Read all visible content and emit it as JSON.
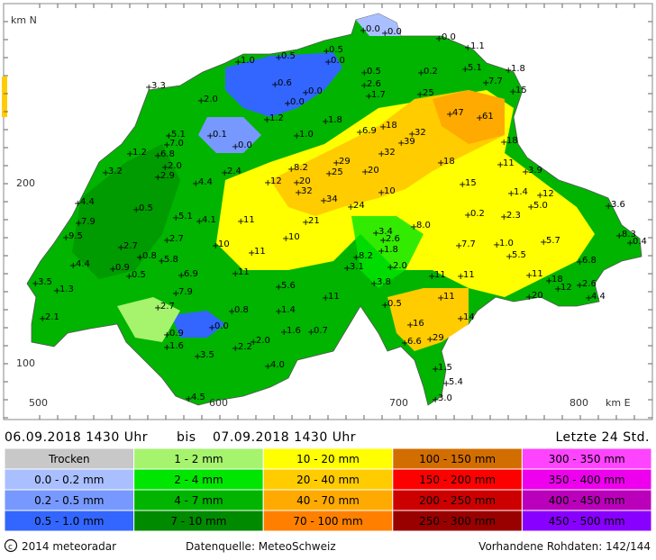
{
  "map": {
    "axis_labels": {
      "north": "km N",
      "east": "km E"
    },
    "y_ticks": [
      "200",
      "100"
    ],
    "x_ticks": [
      "500",
      "600",
      "700",
      "800"
    ],
    "stations": [
      "0.0",
      "0.0",
      "0.0",
      "1.1",
      "0.5",
      "1.0",
      "0.5",
      "0.0",
      "0.5",
      "0.2",
      "5.1",
      "1.8",
      "7.7",
      "15",
      "3.3",
      "0.6",
      "2.6",
      "0.0",
      "0.0",
      "1.7",
      "25",
      "2.0",
      "1.2",
      "1.8",
      "47",
      "61",
      "18",
      "32",
      "6.9",
      "39",
      "0.1",
      "0.0",
      "1.0",
      "5.1",
      "7.0",
      "18",
      "32",
      "1.2",
      "6.8",
      "2.0",
      "3.2",
      "2.9",
      "29",
      "8.2",
      "25",
      "20",
      "18",
      "11",
      "3.9",
      "2.4",
      "12",
      "20",
      "32",
      "4.4",
      "15",
      "10",
      "1.4",
      "12",
      "4.4",
      "34",
      "24",
      "5.0",
      "0.5",
      "5.1",
      "4.1",
      "11",
      "21",
      "0.2",
      "2.3",
      "3.6",
      "7.9",
      "8.0",
      "9.5",
      "3.4",
      "2.6",
      "10",
      "8.3",
      "0.4",
      "5.7",
      "10",
      "11",
      "2.7",
      "2.7",
      "7.7",
      "1.0",
      "1.8",
      "8.2",
      "5.5",
      "6.8",
      "4.4",
      "0.8",
      "5.8",
      "0.9",
      "0.5",
      "6.9",
      "11",
      "3.1",
      "2.0",
      "11",
      "11",
      "11",
      "18",
      "12",
      "2.6",
      "4.4",
      "3.5",
      "1.3",
      "7.9",
      "5.6",
      "11",
      "3.8",
      "11",
      "20",
      "2.7",
      "0.8",
      "1.4",
      "0.5",
      "14",
      "2.1",
      "0.0",
      "1.6",
      "0.7",
      "16",
      "6.6",
      "29",
      "0.9",
      "1.6",
      "2.0",
      "2.2",
      "3.5",
      "4.0",
      "1.5",
      "5.4",
      "3.0",
      "4.5"
    ]
  },
  "header": {
    "from": "06.09.2018 1430 Uhr",
    "bis": "bis",
    "to": "07.09.2018 1430 Uhr",
    "period": "Letzte 24 Std."
  },
  "legend": {
    "rows": [
      [
        {
          "label": "Trocken",
          "color": "#c8c8c8"
        },
        {
          "label": "1 - 2 mm",
          "color": "#a6f36e"
        },
        {
          "label": "10 - 20 mm",
          "color": "#ffff00"
        },
        {
          "label": "100 - 150 mm",
          "color": "#d26e00"
        },
        {
          "label": "300 - 350 mm",
          "color": "#ff44ff"
        }
      ],
      [
        {
          "label": "0.0 - 0.2 mm",
          "color": "#aabfff"
        },
        {
          "label": "2 - 4 mm",
          "color": "#00e600"
        },
        {
          "label": "20 - 40 mm",
          "color": "#ffcc00"
        },
        {
          "label": "150 - 200 mm",
          "color": "#ff0000"
        },
        {
          "label": "350 - 400 mm",
          "color": "#ee00ee"
        }
      ],
      [
        {
          "label": "0.2 - 0.5 mm",
          "color": "#7799ff"
        },
        {
          "label": "4 - 7 mm",
          "color": "#00b400"
        },
        {
          "label": "40 - 70 mm",
          "color": "#ffaa00"
        },
        {
          "label": "200 - 250 mm",
          "color": "#cc0000"
        },
        {
          "label": "400 - 450 mm",
          "color": "#bb00bb"
        }
      ],
      [
        {
          "label": "0.5 - 1.0 mm",
          "color": "#3366ff"
        },
        {
          "label": "7 - 10 mm",
          "color": "#008a00"
        },
        {
          "label": "70 - 100 mm",
          "color": "#ff8000"
        },
        {
          "label": "250 - 300 mm",
          "color": "#990000"
        },
        {
          "label": "450 - 500 mm",
          "color": "#8800ff"
        }
      ]
    ]
  },
  "footer": {
    "copyright": "2014 meteoradar",
    "source": "Datenquelle: MeteoSchweiz",
    "raw": "Vorhandene Rohdaten: 142/144"
  }
}
